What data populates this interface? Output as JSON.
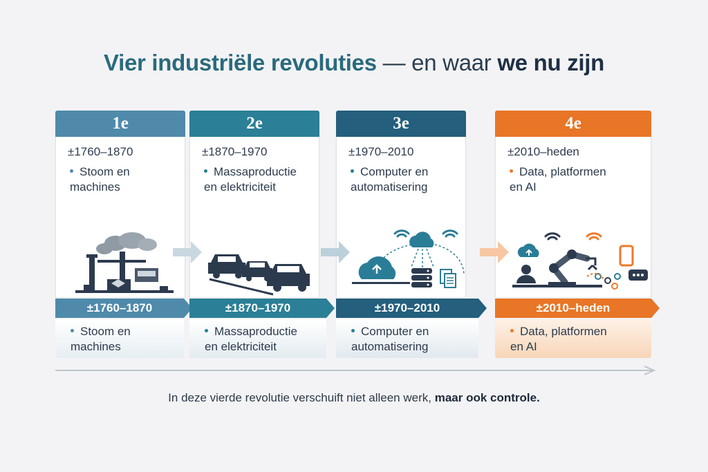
{
  "title": {
    "part1": "Vier industriële revoluties",
    "part2": " — en waar ",
    "part3": "we nu zijn"
  },
  "revolutions": [
    {
      "label": "1e",
      "period": "±1760–1870",
      "line1": "Stoom en",
      "line2": "machines",
      "color": "#4f8aaa",
      "illustration": "factory-icon"
    },
    {
      "label": "2e",
      "period": "±1870–1970",
      "line1": "Massaproductie",
      "line2": "en elektriciteit",
      "color": "#2b7f96",
      "illustration": "cars-icon"
    },
    {
      "label": "3e",
      "period": "±1970–2010",
      "line1": "Computer en",
      "line2": "automatisering",
      "color": "#245f7d",
      "illustration": "cloud-server-icon"
    },
    {
      "label": "4e",
      "period": "±2010–heden",
      "line1": "Data, platformen",
      "line2": "en AI",
      "color": "#e87626",
      "illustration": "robot-ai-icon"
    }
  ],
  "caption": {
    "normal": "In deze vierde revolutie verschuift niet alleen werk, ",
    "bold": "maar ook controle."
  },
  "colors": {
    "dark_icon": "#2c3a4e",
    "teal_icon": "#2a7d96",
    "orange": "#ee7a2a"
  }
}
